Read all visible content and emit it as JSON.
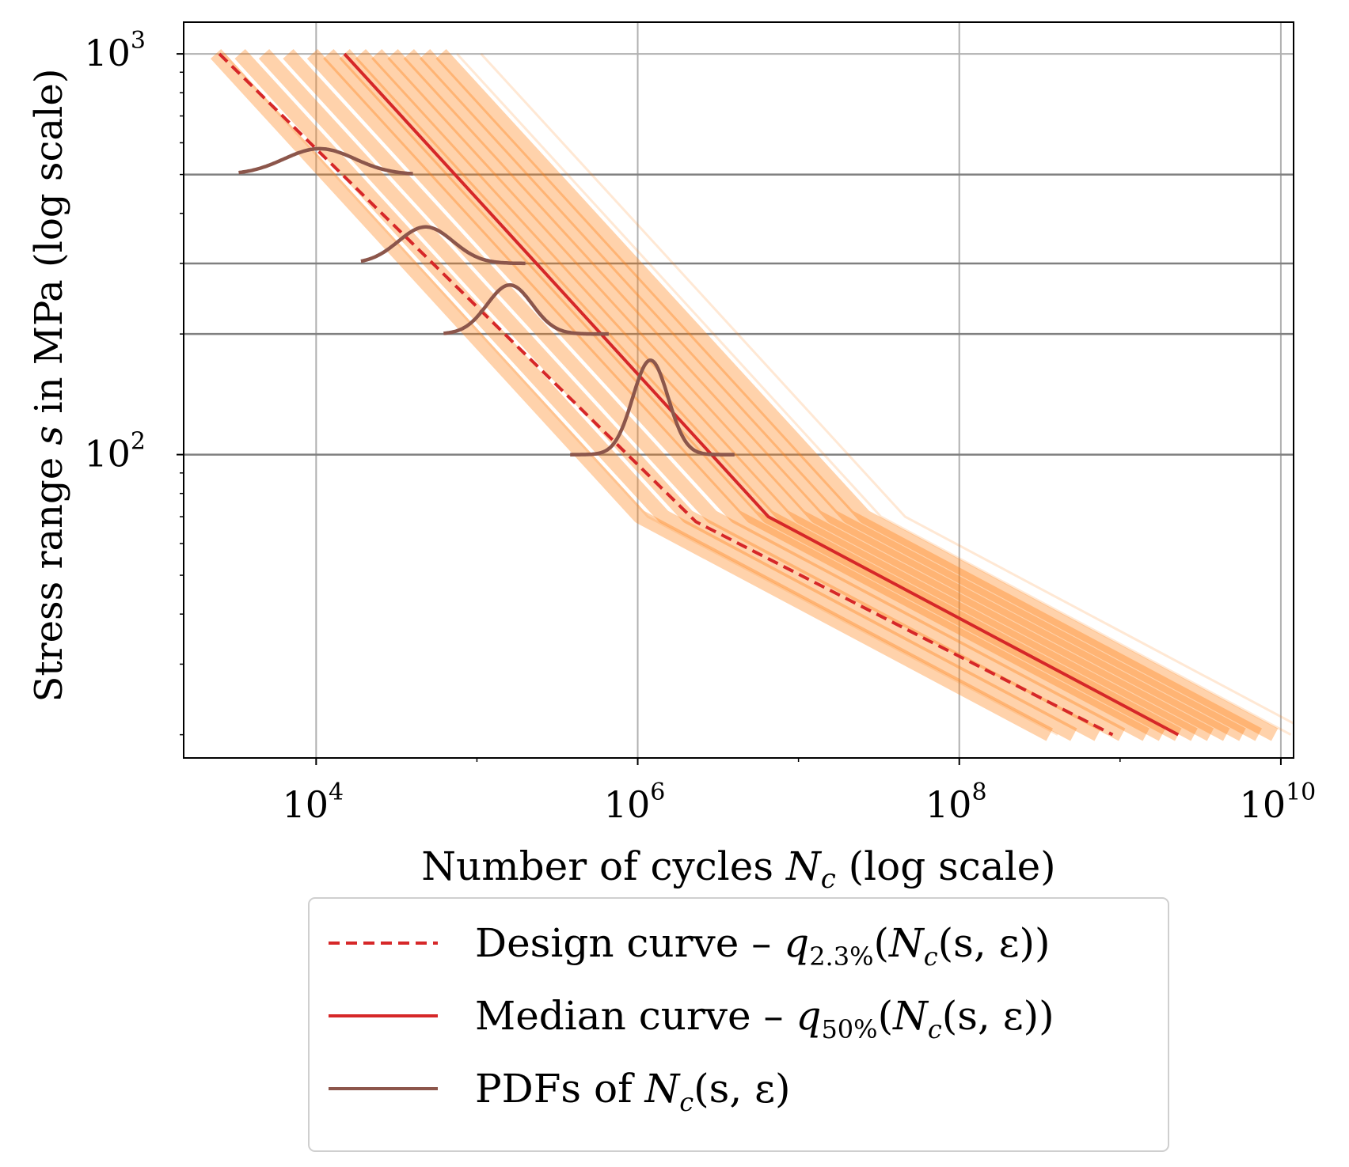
{
  "chart_data": {
    "type": "line",
    "xscale": "log",
    "yscale": "log",
    "xlim": [
      1500,
      12000000000
    ],
    "ylim": [
      17.5,
      1200
    ],
    "xlabel": {
      "prefix": "Number of cycles ",
      "var": "N",
      "sub": "c",
      "suffix": " (log scale)"
    },
    "ylabel": {
      "prefix": "Stress range ",
      "var": "s",
      "suffix": " in MPa (log scale)"
    },
    "x_ticks": [
      {
        "value": 10000,
        "base": "10",
        "exp": "4"
      },
      {
        "value": 1000000,
        "base": "10",
        "exp": "6"
      },
      {
        "value": 100000000,
        "base": "10",
        "exp": "8"
      },
      {
        "value": 10000000000,
        "base": "10",
        "exp": "10"
      }
    ],
    "y_ticks": [
      {
        "value": 100,
        "base": "10",
        "exp": "2"
      },
      {
        "value": 1000,
        "base": "10",
        "exp": "3"
      }
    ],
    "grid": true,
    "highlight_gridlines_y": [
      100,
      200,
      300,
      500
    ],
    "series": [
      {
        "name": "Design curve – q2.3%(Nc(s, ε))",
        "style": "dashed",
        "color": "#d62728",
        "points": [
          [
            2500,
            1000
          ],
          [
            2300000,
            68
          ],
          [
            900000000,
            20
          ]
        ]
      },
      {
        "name": "Median curve – q50%(Nc(s, ε))",
        "style": "solid",
        "color": "#d62728",
        "points": [
          [
            15000,
            1000
          ],
          [
            6500000,
            70
          ],
          [
            2300000000,
            20
          ]
        ]
      }
    ],
    "sample_band": {
      "color": "#ff7f0e",
      "offsets_log10": [
        -0.8,
        -0.65,
        -0.5,
        -0.35,
        -0.2,
        -0.1,
        0,
        0.1,
        0.2,
        0.3,
        0.4,
        0.5,
        0.6
      ],
      "faint_offsets_log10": [
        -0.75,
        0.7,
        0.85
      ]
    },
    "pdfs": {
      "name": "PDFs of Nc(s, ε)",
      "color": "#8c564b",
      "items": [
        {
          "s": 500,
          "x_start": 3300,
          "x_end": 40000,
          "peak_x": 10500,
          "peak_y": 580,
          "sigma_log10": 0.22
        },
        {
          "s": 300,
          "x_start": 19000,
          "x_end": 200000,
          "peak_x": 48000,
          "peak_y": 370,
          "sigma_log10": 0.17
        },
        {
          "s": 200,
          "x_start": 62000,
          "x_end": 660000,
          "peak_x": 160000,
          "peak_y": 265,
          "sigma_log10": 0.14
        },
        {
          "s": 100,
          "x_start": 380000,
          "x_end": 4000000,
          "peak_x": 1200000,
          "peak_y": 172,
          "sigma_log10": 0.11
        }
      ]
    },
    "legend": {
      "placement": "below",
      "entries": [
        {
          "key": "design",
          "style": "dashed",
          "color": "#d62728",
          "prefix": "Design curve – ",
          "q": "q",
          "qsub": "2.3%",
          "expr_a": "(",
          "var": "N",
          "sub": "c",
          "expr_b": "(s, ε))"
        },
        {
          "key": "median",
          "style": "solid",
          "color": "#d62728",
          "prefix": "Median curve – ",
          "q": "q",
          "qsub": "50%",
          "expr_a": "(",
          "var": "N",
          "sub": "c",
          "expr_b": "(s, ε))"
        },
        {
          "key": "pdfs",
          "style": "solid",
          "color": "#8c564b",
          "prefix": "PDFs of ",
          "q": "",
          "qsub": "",
          "expr_a": "",
          "var": "N",
          "sub": "c",
          "expr_b": "(s, ε)"
        }
      ]
    }
  }
}
